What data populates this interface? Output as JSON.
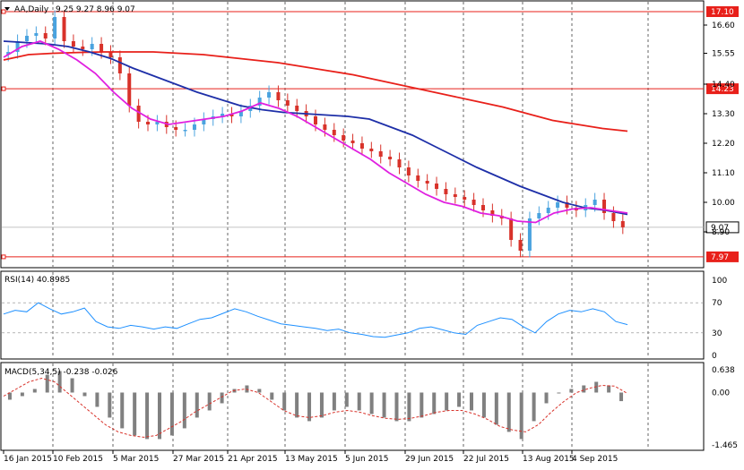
{
  "header": {
    "menu_arrow": "down-triangle",
    "symbol": "AA,Daily",
    "ohlc": "9.25 9.27 8.96 9.07"
  },
  "main": {
    "price_labels": [
      "16.60",
      "15.55",
      "14.40",
      "13.30",
      "12.20",
      "11.10",
      "10.00",
      "8.90"
    ],
    "hlines": [
      {
        "value": 17.1,
        "label": "17.10"
      },
      {
        "value": 14.23,
        "label": "14.23"
      },
      {
        "value": 7.97,
        "label": "7.97"
      }
    ],
    "current_price": {
      "value": 9.07,
      "label": "9.07"
    },
    "candles": {
      "up_color": "#4aa3df",
      "down_color": "#d8322a"
    },
    "series": [
      {
        "color": "#e8201a"
      },
      {
        "color": "#1e2fa8"
      },
      {
        "color": "#e020e0"
      }
    ]
  },
  "rsi": {
    "title": "RSI(14) 40.8985",
    "levels": [
      "100",
      "70",
      "30",
      "0"
    ],
    "color": "#1e90ff"
  },
  "macd": {
    "title": "MACD(5,34,5) -0.238 -0.026",
    "levels": [
      "0.638",
      "0.00",
      "-1.465"
    ],
    "histogram_color": "#808080",
    "signal_color": "#d8322a"
  },
  "x_axis": {
    "dates": [
      "16 Jan 2015",
      "10 Feb 2015",
      "5 Mar 2015",
      "27 Mar 2015",
      "21 Apr 2015",
      "13 May 2015",
      "5 Jun 2015",
      "29 Jun 2015",
      "22 Jul 2015",
      "13 Aug 2015",
      "4 Sep 2015"
    ]
  },
  "chart_data": {
    "type": "line",
    "title": "AA,Daily",
    "x_labels": [
      "16 Jan 2015",
      "10 Feb 2015",
      "5 Mar 2015",
      "27 Mar 2015",
      "21 Apr 2015",
      "13 May 2015",
      "5 Jun 2015",
      "29 Jun 2015",
      "22 Jul 2015",
      "13 Aug 2015",
      "4 Sep 2015"
    ],
    "ylim": [
      7.6,
      17.4
    ],
    "close_series": [
      15.6,
      16.0,
      16.2,
      16.3,
      16.1,
      16.9,
      16.0,
      15.8,
      15.7,
      15.9,
      15.6,
      15.4,
      14.8,
      13.6,
      13.0,
      12.9,
      13.0,
      12.8,
      12.7,
      12.7,
      12.9,
      13.1,
      13.2,
      13.3,
      13.2,
      13.4,
      13.6,
      13.9,
      14.1,
      13.8,
      13.6,
      13.4,
      13.2,
      12.9,
      12.7,
      12.5,
      12.3,
      12.2,
      12.0,
      11.9,
      11.7,
      11.6,
      11.3,
      11.0,
      10.8,
      10.7,
      10.5,
      10.3,
      10.2,
      10.1,
      9.9,
      9.7,
      9.5,
      9.4,
      8.6,
      8.2,
      9.4,
      9.6,
      9.8,
      10.0,
      9.8,
      9.7,
      9.9,
      10.1,
      9.6,
      9.3,
      9.07
    ],
    "ma_slow_series": [
      15.3,
      15.5,
      15.55,
      15.58,
      15.6,
      15.6,
      15.6,
      15.55,
      15.5,
      15.4,
      15.3,
      15.2,
      15.05,
      14.9,
      14.75,
      14.55,
      14.35,
      14.15,
      13.95,
      13.75,
      13.55,
      13.3,
      13.05,
      12.9,
      12.75,
      12.65
    ],
    "ma_mid_series": [
      16.0,
      15.95,
      15.9,
      15.8,
      15.6,
      15.35,
      15.0,
      14.7,
      14.4,
      14.1,
      13.85,
      13.6,
      13.45,
      13.35,
      13.3,
      13.25,
      13.2,
      13.1,
      12.8,
      12.5,
      12.1,
      11.7,
      11.3,
      10.95,
      10.6,
      10.3,
      10.0,
      9.8,
      9.7,
      9.55
    ],
    "ma_fast_series": [
      15.4,
      15.8,
      16.0,
      15.7,
      15.3,
      14.8,
      14.1,
      13.5,
      13.1,
      12.9,
      13.0,
      13.1,
      13.2,
      13.4,
      13.7,
      13.5,
      13.2,
      12.8,
      12.4,
      12.0,
      11.6,
      11.1,
      10.7,
      10.3,
      10.0,
      9.85,
      9.6,
      9.5,
      9.3,
      9.25,
      9.6,
      9.75,
      9.8,
      9.7,
      9.6
    ],
    "rsi_series": [
      55,
      60,
      58,
      70,
      62,
      55,
      58,
      63,
      45,
      38,
      36,
      40,
      38,
      35,
      38,
      36,
      42,
      48,
      50,
      56,
      62,
      58,
      52,
      47,
      42,
      40,
      38,
      36,
      33,
      35,
      30,
      28,
      25,
      24,
      27,
      30,
      36,
      38,
      34,
      30,
      28,
      40,
      45,
      50,
      48,
      38,
      30,
      45,
      55,
      60,
      58,
      62,
      58,
      45,
      41
    ],
    "macd_hist_series": [
      -0.2,
      -0.1,
      0.1,
      0.5,
      0.6,
      0.4,
      -0.1,
      -0.4,
      -0.7,
      -1.0,
      -1.2,
      -1.3,
      -1.3,
      -1.2,
      -1.0,
      -0.7,
      -0.5,
      -0.3,
      0.1,
      0.2,
      0.1,
      -0.2,
      -0.5,
      -0.7,
      -0.8,
      -0.7,
      -0.5,
      -0.4,
      -0.5,
      -0.6,
      -0.7,
      -0.8,
      -0.8,
      -0.7,
      -0.6,
      -0.5,
      -0.4,
      -0.5,
      -0.7,
      -0.9,
      -1.1,
      -1.3,
      -0.8,
      -0.3,
      0.0,
      0.1,
      0.2,
      0.3,
      0.2,
      -0.24
    ],
    "macd_signal_series": [
      -0.1,
      0.1,
      0.3,
      0.4,
      0.3,
      0.0,
      -0.3,
      -0.6,
      -0.9,
      -1.1,
      -1.2,
      -1.25,
      -1.2,
      -1.0,
      -0.8,
      -0.55,
      -0.35,
      -0.15,
      0.05,
      0.1,
      0.0,
      -0.25,
      -0.5,
      -0.65,
      -0.7,
      -0.65,
      -0.55,
      -0.5,
      -0.55,
      -0.65,
      -0.72,
      -0.75,
      -0.72,
      -0.65,
      -0.55,
      -0.5,
      -0.5,
      -0.6,
      -0.75,
      -0.95,
      -1.05,
      -1.1,
      -0.9,
      -0.55,
      -0.25,
      0.0,
      0.12,
      0.2,
      0.18,
      -0.026
    ]
  }
}
